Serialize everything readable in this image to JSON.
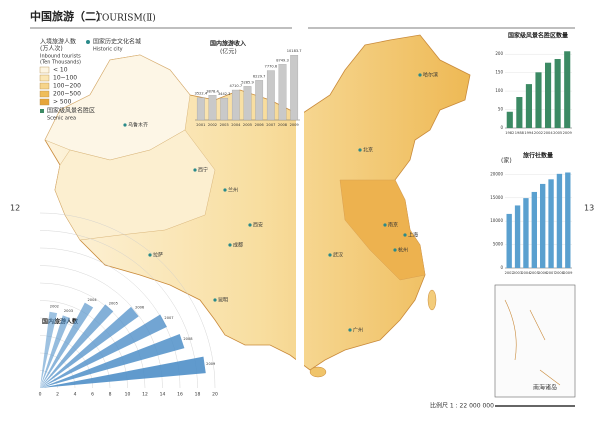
{
  "header": {
    "title": "中国旅游（二）",
    "subtitle": "TOURISM(Ⅱ)",
    "page_left": "12",
    "page_right": "13"
  },
  "legend": {
    "title": "入境旅游人数",
    "unit": "(万人次)",
    "title_en": "Inbound tourists",
    "unit_en": "(Ten Thousands)",
    "classes": [
      {
        "label": "< 10",
        "color": "#fdf5e2"
      },
      {
        "label": "10~100",
        "color": "#fbe6b4"
      },
      {
        "label": "100~200",
        "color": "#f6d48a"
      },
      {
        "label": "200~500",
        "color": "#efbd5a"
      },
      {
        "label": "> 500",
        "color": "#e6a53a"
      }
    ],
    "city_symbol": "国家历史文化名城",
    "city_symbol_en": "Historic city",
    "scenic_symbol": "国家级风景名胜区",
    "scenic_symbol_en": "Scenic area"
  },
  "map": {
    "cities": [
      "乌鲁木齐",
      "拉萨",
      "西宁",
      "兰州",
      "西安",
      "成都",
      "昆明",
      "北京",
      "哈尔滨",
      "上海",
      "广州",
      "南京",
      "杭州",
      "武汉"
    ],
    "inset_title": "南海诸岛",
    "scale": "比例尺  1 : 22 000 000"
  },
  "chart_data": [
    {
      "type": "bar",
      "title": "国内旅游收入",
      "unit": "(亿元)",
      "categories": [
        "2001",
        "2002",
        "2003",
        "2004",
        "2005",
        "2006",
        "2007",
        "2008",
        "2009"
      ],
      "values": [
        3522.4,
        3878.4,
        3442.3,
        4710.7,
        5285.9,
        6229.7,
        7770.6,
        8749.3,
        10183.7
      ],
      "color": "#c9c9c9",
      "ylim": [
        0,
        11000
      ]
    },
    {
      "type": "bar",
      "title": "国家级风景名胜区数量",
      "categories": [
        "1982",
        "1988",
        "1994",
        "2002",
        "2004",
        "2005",
        "2009"
      ],
      "values": [
        44,
        84,
        119,
        151,
        177,
        187,
        208
      ],
      "color": "#3c8a64",
      "ylim": [
        0,
        225
      ],
      "yticks": [
        0,
        50,
        100,
        150,
        200
      ]
    },
    {
      "type": "bar",
      "title": "旅行社数量",
      "unit": "(家)",
      "categories": [
        "2002",
        "2003",
        "2004",
        "2005",
        "2006",
        "2007",
        "2008",
        "2009"
      ],
      "values": [
        11552,
        13361,
        14927,
        16245,
        17957,
        18943,
        20110,
        20399
      ],
      "color": "#5aa0cf",
      "ylim": [
        0,
        22000
      ],
      "yticks": [
        0,
        5000,
        10000,
        15000,
        20000
      ]
    },
    {
      "type": "fan",
      "title": "国内旅游人数",
      "categories": [
        "2002",
        "2003",
        "2004",
        "2005",
        "2006",
        "2007",
        "2008",
        "2009"
      ],
      "values": [
        8.78,
        8.7,
        11.02,
        12.12,
        13.94,
        16.1,
        17.12,
        19.02
      ],
      "color": "#4f8fc8",
      "xlim": [
        0,
        20
      ],
      "xticks": [
        0,
        2,
        4,
        6,
        8,
        10,
        12,
        14,
        16,
        18,
        20
      ]
    }
  ]
}
